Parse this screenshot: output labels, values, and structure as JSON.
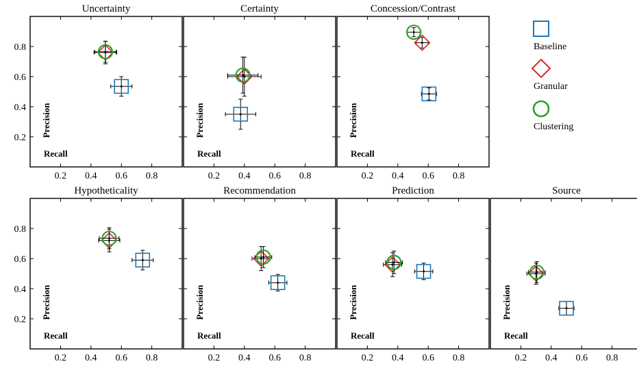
{
  "figure": {
    "legend_placement": "right of top row",
    "legend": [
      {
        "label": "Baseline",
        "marker": "square",
        "color": "#1f77b4"
      },
      {
        "label": "Granular",
        "marker": "diamond",
        "color": "#d62728"
      },
      {
        "label": "Clustering",
        "marker": "circle",
        "color": "#2ca02c"
      }
    ]
  },
  "chart_data": [
    {
      "type": "scatter",
      "title": "Uncertainty",
      "xlabel": "Recall",
      "ylabel": "Precision",
      "xlim": [
        0,
        1
      ],
      "ylim": [
        0,
        1
      ],
      "xticks": [
        "0.2",
        "0.4",
        "0.6",
        "0.8"
      ],
      "yticks": [
        "0.2",
        "0.4",
        "0.6",
        "0.8"
      ],
      "show_x_ticklabels": true,
      "show_y_ticklabels": true,
      "grid": false,
      "series": [
        {
          "name": "Baseline",
          "marker": "square",
          "x": 0.6,
          "y": 0.535,
          "x_err": 0.07,
          "y_err": 0.065
        },
        {
          "name": "Granular",
          "marker": "diamond",
          "x": 0.495,
          "y": 0.76,
          "x_err": 0.075,
          "y_err": 0.075
        },
        {
          "name": "Clustering",
          "marker": "circle",
          "x": 0.495,
          "y": 0.765,
          "x_err": 0.07,
          "y_err": 0.07
        }
      ]
    },
    {
      "type": "scatter",
      "title": "Certainty",
      "xlabel": "Recall",
      "ylabel": "Precision",
      "xlim": [
        0,
        1
      ],
      "ylim": [
        0,
        1
      ],
      "xticks": [
        "0.2",
        "0.4",
        "0.6",
        "0.8"
      ],
      "yticks": [
        "0.2",
        "0.4",
        "0.6",
        "0.8"
      ],
      "show_x_ticklabels": true,
      "show_y_ticklabels": false,
      "grid": false,
      "series": [
        {
          "name": "Baseline",
          "marker": "square",
          "x": 0.375,
          "y": 0.35,
          "x_err": 0.1,
          "y_err": 0.1
        },
        {
          "name": "Granular",
          "marker": "diamond",
          "x": 0.4,
          "y": 0.6,
          "x_err": 0.11,
          "y_err": 0.13
        },
        {
          "name": "Clustering",
          "marker": "circle",
          "x": 0.39,
          "y": 0.61,
          "x_err": 0.1,
          "y_err": 0.12
        }
      ]
    },
    {
      "type": "scatter",
      "title": "Concession/Contrast",
      "xlabel": "Recall",
      "ylabel": "Precision",
      "xlim": [
        0,
        1
      ],
      "ylim": [
        0,
        1
      ],
      "xticks": [
        "0.2",
        "0.4",
        "0.6",
        "0.8"
      ],
      "yticks": [
        "0.2",
        "0.4",
        "0.6",
        "0.8"
      ],
      "show_x_ticklabels": true,
      "show_y_ticklabels": false,
      "grid": false,
      "series": [
        {
          "name": "Baseline",
          "marker": "square",
          "x": 0.605,
          "y": 0.485,
          "x_err": 0.05,
          "y_err": 0.04
        },
        {
          "name": "Granular",
          "marker": "diamond",
          "x": 0.56,
          "y": 0.825,
          "x_err": 0.04,
          "y_err": 0.035
        },
        {
          "name": "Clustering",
          "marker": "circle",
          "x": 0.505,
          "y": 0.895,
          "x_err": 0.045,
          "y_err": 0.03
        }
      ]
    },
    {
      "type": "scatter",
      "title": "Hypotheticality",
      "xlabel": "Recall",
      "ylabel": "Precision",
      "xlim": [
        0,
        1
      ],
      "ylim": [
        0,
        1
      ],
      "xticks": [
        "0.2",
        "0.4",
        "0.6",
        "0.8"
      ],
      "yticks": [
        "0.2",
        "0.4",
        "0.6",
        "0.8"
      ],
      "show_x_ticklabels": true,
      "show_y_ticklabels": true,
      "grid": false,
      "series": [
        {
          "name": "Baseline",
          "marker": "square",
          "x": 0.74,
          "y": 0.59,
          "x_err": 0.07,
          "y_err": 0.065
        },
        {
          "name": "Granular",
          "marker": "diamond",
          "x": 0.52,
          "y": 0.72,
          "x_err": 0.07,
          "y_err": 0.075
        },
        {
          "name": "Clustering",
          "marker": "circle",
          "x": 0.52,
          "y": 0.735,
          "x_err": 0.065,
          "y_err": 0.07
        }
      ]
    },
    {
      "type": "scatter",
      "title": "Recommendation",
      "xlabel": "Recall",
      "ylabel": "Precision",
      "xlim": [
        0,
        1
      ],
      "ylim": [
        0,
        1
      ],
      "xticks": [
        "0.2",
        "0.4",
        "0.6",
        "0.8"
      ],
      "yticks": [
        "0.2",
        "0.4",
        "0.6",
        "0.8"
      ],
      "show_x_ticklabels": true,
      "show_y_ticklabels": false,
      "grid": false,
      "series": [
        {
          "name": "Baseline",
          "marker": "square",
          "x": 0.62,
          "y": 0.44,
          "x_err": 0.06,
          "y_err": 0.055
        },
        {
          "name": "Granular",
          "marker": "diamond",
          "x": 0.51,
          "y": 0.6,
          "x_err": 0.06,
          "y_err": 0.08
        },
        {
          "name": "Clustering",
          "marker": "circle",
          "x": 0.525,
          "y": 0.61,
          "x_err": 0.055,
          "y_err": 0.07
        }
      ]
    },
    {
      "type": "scatter",
      "title": "Prediction",
      "xlabel": "Recall",
      "ylabel": "Precision",
      "xlim": [
        0,
        1
      ],
      "ylim": [
        0,
        1
      ],
      "xticks": [
        "0.2",
        "0.4",
        "0.6",
        "0.8"
      ],
      "yticks": [
        "0.2",
        "0.4",
        "0.6",
        "0.8"
      ],
      "show_x_ticklabels": true,
      "show_y_ticklabels": false,
      "grid": false,
      "series": [
        {
          "name": "Baseline",
          "marker": "square",
          "x": 0.57,
          "y": 0.515,
          "x_err": 0.06,
          "y_err": 0.055
        },
        {
          "name": "Granular",
          "marker": "diamond",
          "x": 0.365,
          "y": 0.56,
          "x_err": 0.06,
          "y_err": 0.08
        },
        {
          "name": "Clustering",
          "marker": "circle",
          "x": 0.375,
          "y": 0.575,
          "x_err": 0.055,
          "y_err": 0.075
        }
      ]
    },
    {
      "type": "scatter",
      "title": "Source",
      "xlabel": "Recall",
      "ylabel": "Precision",
      "xlim": [
        0,
        1
      ],
      "ylim": [
        0,
        1
      ],
      "xticks": [
        "0.2",
        "0.4",
        "0.6",
        "0.8"
      ],
      "yticks": [],
      "show_x_ticklabels": true,
      "show_y_ticklabels": false,
      "grid": false,
      "series": [
        {
          "name": "Baseline",
          "marker": "square",
          "x": 0.5,
          "y": 0.27,
          "x_err": 0.05,
          "y_err": 0.045
        },
        {
          "name": "Granular",
          "marker": "diamond",
          "x": 0.3,
          "y": 0.5,
          "x_err": 0.06,
          "y_err": 0.07
        },
        {
          "name": "Clustering",
          "marker": "circle",
          "x": 0.305,
          "y": 0.51,
          "x_err": 0.055,
          "y_err": 0.07
        }
      ]
    }
  ]
}
